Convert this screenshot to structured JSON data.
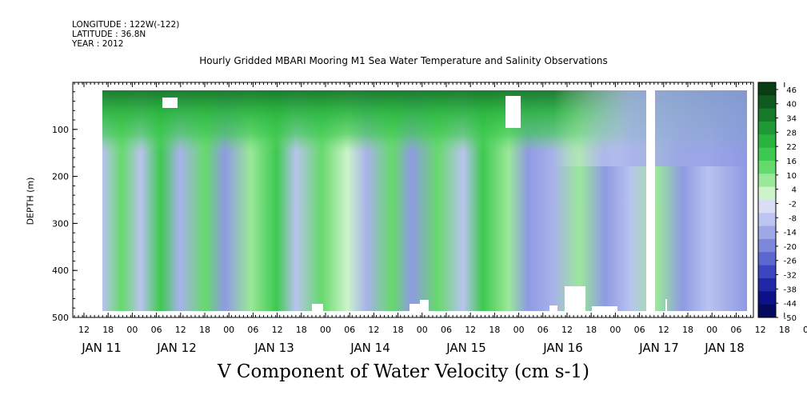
{
  "header": {
    "longitude": "LONGITUDE : 122W(-122)",
    "latitude": "LATITUDE : 36.8N",
    "year": "YEAR : 2012"
  },
  "chart_data": {
    "type": "heatmap",
    "title": "Hourly Gridded MBARI Mooring M1 Sea Water Temperature and Salinity Observations",
    "footer": "V Component of Water Velocity (cm s-1)",
    "ylabel": "DEPTH (m)",
    "xlabel": "",
    "yaxis": {
      "range": [
        500,
        0
      ],
      "inverted": true,
      "ticks": [
        100,
        200,
        300,
        400,
        500
      ]
    },
    "xaxis": {
      "hour_ticks": [
        "12",
        "18",
        "00",
        "06",
        "12",
        "18",
        "00",
        "06",
        "12",
        "18",
        "00",
        "06",
        "12",
        "18",
        "00",
        "06",
        "12",
        "18",
        "00",
        "06",
        "12",
        "18",
        "00",
        "06",
        "12",
        "18",
        "00",
        "06",
        "12",
        "18",
        "00",
        "06"
      ],
      "date_labels": [
        "JAN 11",
        "JAN 12",
        "JAN 13",
        "JAN 14",
        "JAN 15",
        "JAN 16",
        "JAN 17",
        "JAN 18"
      ]
    },
    "colorbar": {
      "labels": [
        "46",
        "40",
        "34",
        "28",
        "22",
        "16",
        "10",
        "4",
        "-2",
        "-8",
        "-14",
        "-20",
        "-26",
        "-32",
        "-38",
        "-44",
        "-50"
      ],
      "range": [
        -50,
        49
      ],
      "colors": [
        "#0a3d14",
        "#0f5a1e",
        "#17782a",
        "#1f9935",
        "#2ab43f",
        "#3dc94f",
        "#66d96c",
        "#9be89a",
        "#cdf3c9",
        "#d9def5",
        "#bcc4ef",
        "#9ea8e7",
        "#7d88dc",
        "#5c67cf",
        "#3c46c0",
        "#2128a8",
        "#0c1188",
        "#050a5e"
      ]
    }
  }
}
